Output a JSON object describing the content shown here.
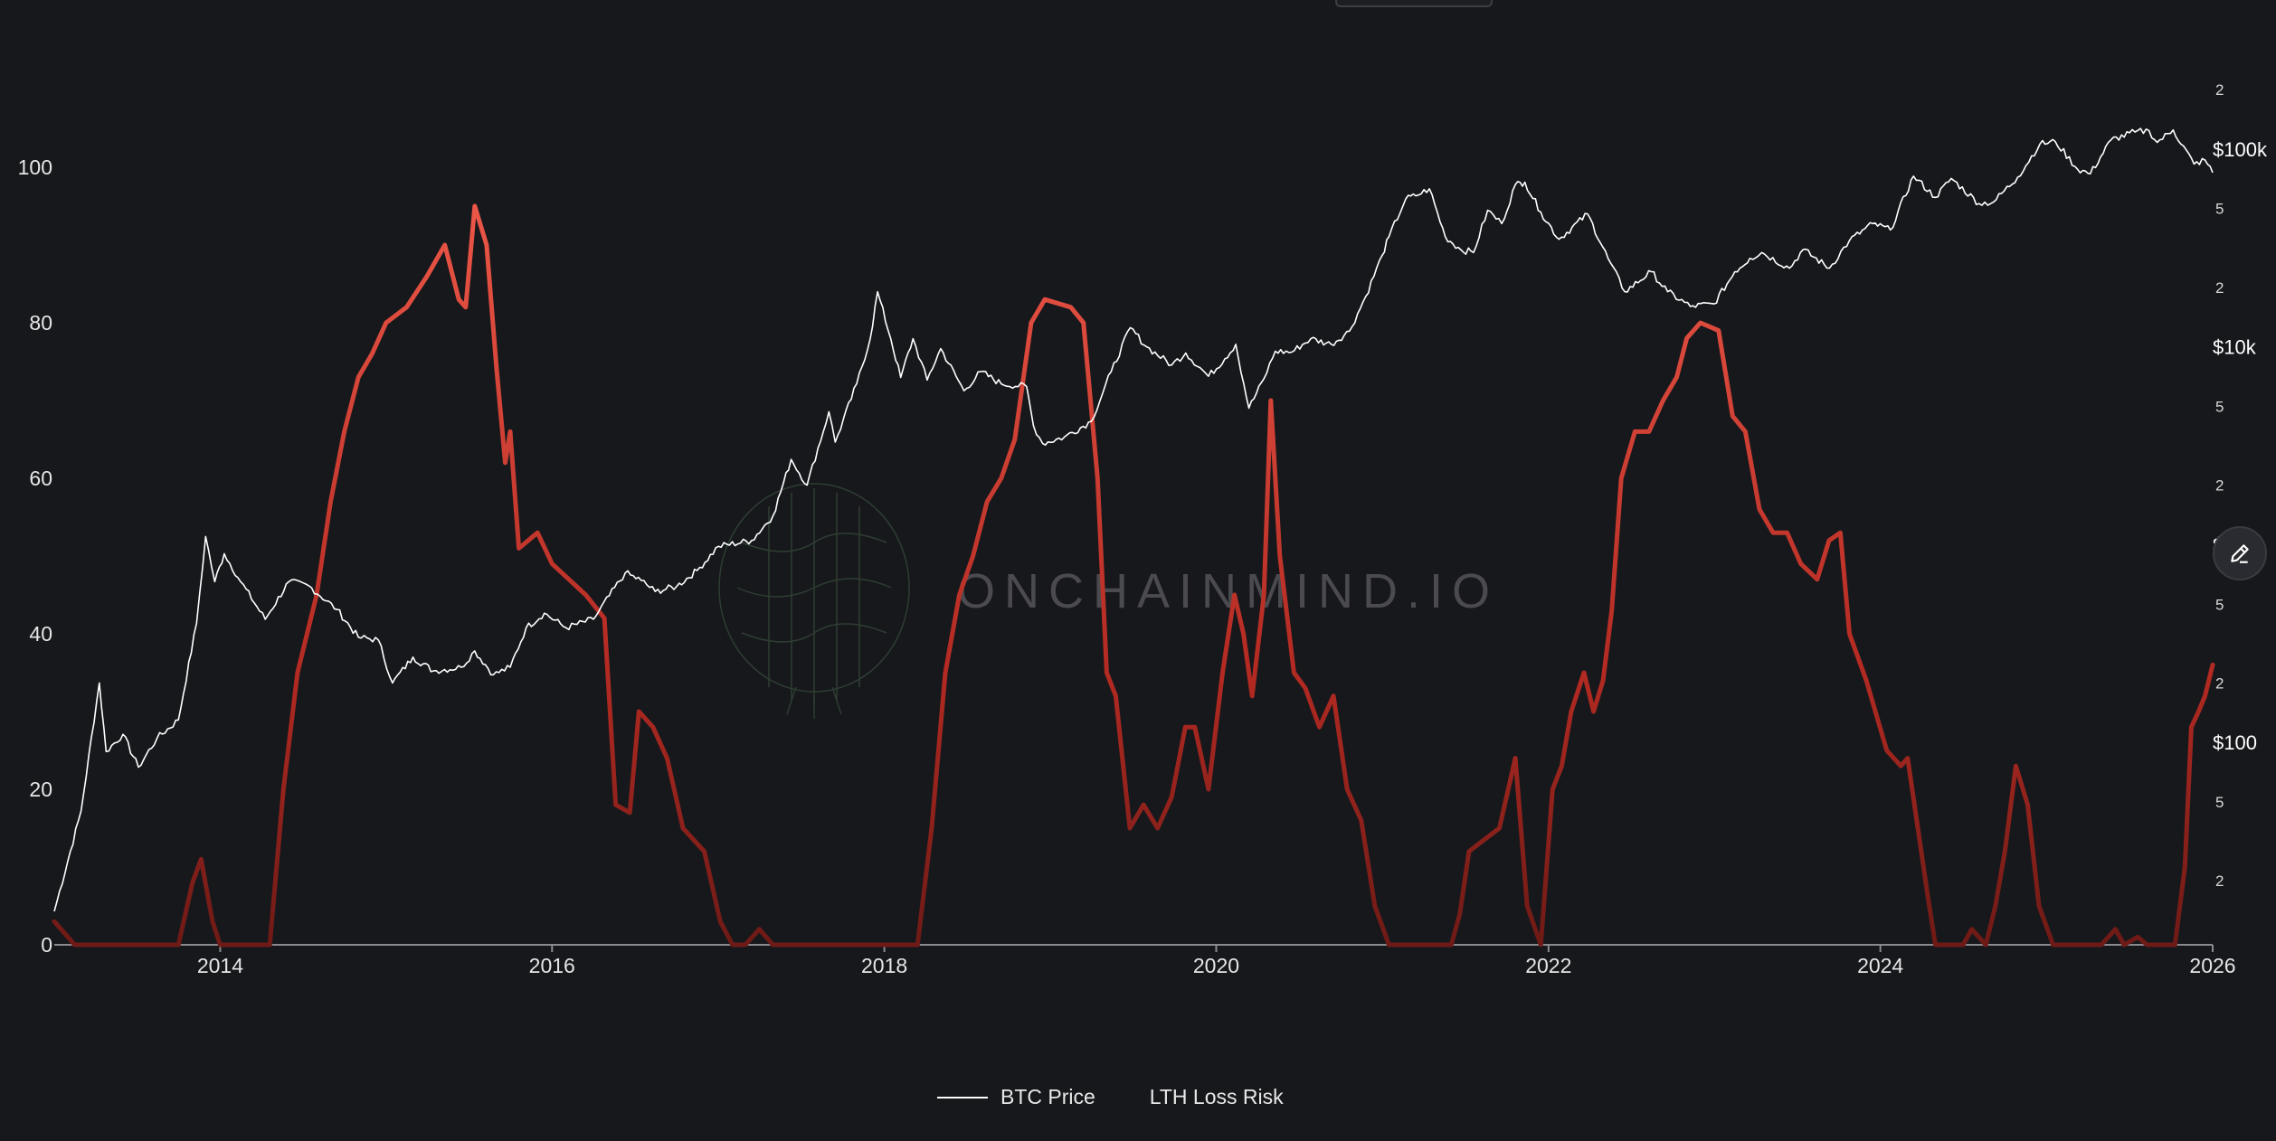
{
  "chart_data": {
    "type": "line",
    "watermark": "ONCHAINMIND.IO",
    "x_axis": {
      "range": [
        "2013-01-01",
        "2026-01-01"
      ],
      "tick_labels": [
        "2014",
        "2016",
        "2018",
        "2020",
        "2022",
        "2024",
        "2026"
      ]
    },
    "y_left": {
      "range": [
        0,
        100
      ],
      "tick_labels": [
        "0",
        "20",
        "40",
        "60",
        "80",
        "100"
      ]
    },
    "y_right": {
      "scale": "log",
      "range": [
        10,
        200000
      ],
      "tick_labels": [
        {
          "v": 20,
          "t": "2"
        },
        {
          "v": 50,
          "t": "5"
        },
        {
          "v": 100,
          "t": "$100"
        },
        {
          "v": 200,
          "t": "2"
        },
        {
          "v": 500,
          "t": "5"
        },
        {
          "v": 1000,
          "t": "$1k"
        },
        {
          "v": 2000,
          "t": "2"
        },
        {
          "v": 5000,
          "t": "5"
        },
        {
          "v": 10000,
          "t": "$10k"
        },
        {
          "v": 20000,
          "t": "2"
        },
        {
          "v": 50000,
          "t": "5"
        },
        {
          "v": 100000,
          "t": "$100k"
        },
        {
          "v": 200000,
          "t": "2"
        }
      ]
    },
    "grid": false,
    "legend_position": "bottom-center",
    "colors": {
      "price": "#ffffff",
      "risk_high": "#e2463a",
      "risk_low": "#7a1d18",
      "background": "#17181c"
    },
    "series": [
      {
        "name": "BTC Price",
        "axis": "right",
        "points": [
          [
            "2013-01-01",
            14
          ],
          [
            "2013-03-01",
            45
          ],
          [
            "2013-04-10",
            200
          ],
          [
            "2013-04-25",
            90
          ],
          [
            "2013-06-01",
            110
          ],
          [
            "2013-07-05",
            75
          ],
          [
            "2013-08-15",
            105
          ],
          [
            "2013-10-01",
            130
          ],
          [
            "2013-11-10",
            400
          ],
          [
            "2013-11-30",
            1100
          ],
          [
            "2013-12-20",
            650
          ],
          [
            "2014-01-10",
            900
          ],
          [
            "2014-02-15",
            650
          ],
          [
            "2014-04-10",
            420
          ],
          [
            "2014-06-01",
            650
          ],
          [
            "2014-07-15",
            620
          ],
          [
            "2014-09-15",
            470
          ],
          [
            "2014-11-01",
            340
          ],
          [
            "2014-12-15",
            330
          ],
          [
            "2015-01-15",
            200
          ],
          [
            "2015-03-01",
            270
          ],
          [
            "2015-04-15",
            230
          ],
          [
            "2015-06-15",
            240
          ],
          [
            "2015-07-15",
            290
          ],
          [
            "2015-08-25",
            220
          ],
          [
            "2015-10-01",
            240
          ],
          [
            "2015-11-05",
            380
          ],
          [
            "2015-12-15",
            450
          ],
          [
            "2016-02-01",
            380
          ],
          [
            "2016-04-01",
            420
          ],
          [
            "2016-06-10",
            720
          ],
          [
            "2016-07-15",
            660
          ],
          [
            "2016-08-15",
            580
          ],
          [
            "2016-10-01",
            615
          ],
          [
            "2016-11-15",
            740
          ],
          [
            "2017-01-01",
            980
          ],
          [
            "2017-03-15",
            1050
          ],
          [
            "2017-05-01",
            1400
          ],
          [
            "2017-06-10",
            2700
          ],
          [
            "2017-07-15",
            2000
          ],
          [
            "2017-09-01",
            4700
          ],
          [
            "2017-09-15",
            3300
          ],
          [
            "2017-11-01",
            6500
          ],
          [
            "2017-12-01",
            11000
          ],
          [
            "2017-12-17",
            19000
          ],
          [
            "2018-01-15",
            11000
          ],
          [
            "2018-02-06",
            7000
          ],
          [
            "2018-03-05",
            11000
          ],
          [
            "2018-04-05",
            6800
          ],
          [
            "2018-05-05",
            9800
          ],
          [
            "2018-06-25",
            6000
          ],
          [
            "2018-08-01",
            7500
          ],
          [
            "2018-09-15",
            6500
          ],
          [
            "2018-11-10",
            6300
          ],
          [
            "2018-11-25",
            4000
          ],
          [
            "2018-12-15",
            3250
          ],
          [
            "2019-02-01",
            3500
          ],
          [
            "2019-04-01",
            4200
          ],
          [
            "2019-05-15",
            7500
          ],
          [
            "2019-06-26",
            12500
          ],
          [
            "2019-08-01",
            10000
          ],
          [
            "2019-09-25",
            8100
          ],
          [
            "2019-10-26",
            9300
          ],
          [
            "2019-12-15",
            7100
          ],
          [
            "2020-01-20",
            8700
          ],
          [
            "2020-02-13",
            10300
          ],
          [
            "2020-03-13",
            4900
          ],
          [
            "2020-04-15",
            6900
          ],
          [
            "2020-05-10",
            9500
          ],
          [
            "2020-06-15",
            9400
          ],
          [
            "2020-07-27",
            11000
          ],
          [
            "2020-09-10",
            10300
          ],
          [
            "2020-10-20",
            12000
          ],
          [
            "2020-11-25",
            18000
          ],
          [
            "2020-12-31",
            29000
          ],
          [
            "2021-01-15",
            36000
          ],
          [
            "2021-02-21",
            56000
          ],
          [
            "2021-03-15",
            58000
          ],
          [
            "2021-04-14",
            63000
          ],
          [
            "2021-05-19",
            36000
          ],
          [
            "2021-06-22",
            31000
          ],
          [
            "2021-07-20",
            30000
          ],
          [
            "2021-08-20",
            49000
          ],
          [
            "2021-09-20",
            42000
          ],
          [
            "2021-10-20",
            66000
          ],
          [
            "2021-11-10",
            68000
          ],
          [
            "2021-12-15",
            48000
          ],
          [
            "2022-01-24",
            35000
          ],
          [
            "2022-03-28",
            47000
          ],
          [
            "2022-05-12",
            28000
          ],
          [
            "2022-06-18",
            19000
          ],
          [
            "2022-08-15",
            24000
          ],
          [
            "2022-09-20",
            19000
          ],
          [
            "2022-11-09",
            16000
          ],
          [
            "2022-12-31",
            16500
          ],
          [
            "2023-02-15",
            24000
          ],
          [
            "2023-03-20",
            28000
          ],
          [
            "2023-04-15",
            30000
          ],
          [
            "2023-06-15",
            25000
          ],
          [
            "2023-07-15",
            31000
          ],
          [
            "2023-09-11",
            25000
          ],
          [
            "2023-10-25",
            34500
          ],
          [
            "2023-12-15",
            42000
          ],
          [
            "2024-01-23",
            39000
          ],
          [
            "2024-03-14",
            73000
          ],
          [
            "2024-05-01",
            57000
          ],
          [
            "2024-06-05",
            71000
          ],
          [
            "2024-08-05",
            53000
          ],
          [
            "2024-09-06",
            54000
          ],
          [
            "2024-10-29",
            72000
          ],
          [
            "2024-12-17",
            106000
          ],
          [
            "2025-01-20",
            109000
          ],
          [
            "2025-03-10",
            79000
          ],
          [
            "2025-04-07",
            75000
          ],
          [
            "2025-05-22",
            111000
          ],
          [
            "2025-07-14",
            122000
          ],
          [
            "2025-08-14",
            124000
          ],
          [
            "2025-09-01",
            108000
          ],
          [
            "2025-10-06",
            125000
          ],
          [
            "2025-11-21",
            84000
          ],
          [
            "2025-12-15",
            88000
          ],
          [
            "2026-01-01",
            76000
          ]
        ]
      },
      {
        "name": "LTH Loss Risk",
        "axis": "left",
        "points": [
          [
            "2013-01-01",
            3
          ],
          [
            "2013-02-15",
            0
          ],
          [
            "2013-10-01",
            0
          ],
          [
            "2013-11-01",
            8
          ],
          [
            "2013-11-20",
            11
          ],
          [
            "2013-12-15",
            3
          ],
          [
            "2014-01-01",
            0
          ],
          [
            "2014-04-20",
            0
          ],
          [
            "2014-05-20",
            20
          ],
          [
            "2014-06-20",
            35
          ],
          [
            "2014-08-01",
            45
          ],
          [
            "2014-09-01",
            57
          ],
          [
            "2014-10-01",
            66
          ],
          [
            "2014-11-01",
            73
          ],
          [
            "2014-12-01",
            76
          ],
          [
            "2015-01-01",
            80
          ],
          [
            "2015-02-15",
            82
          ],
          [
            "2015-04-01",
            86
          ],
          [
            "2015-05-10",
            90
          ],
          [
            "2015-06-10",
            83
          ],
          [
            "2015-06-25",
            82
          ],
          [
            "2015-07-15",
            95
          ],
          [
            "2015-08-10",
            90
          ],
          [
            "2015-09-01",
            74
          ],
          [
            "2015-09-20",
            62
          ],
          [
            "2015-10-01",
            66
          ],
          [
            "2015-10-20",
            51
          ],
          [
            "2015-11-30",
            53
          ],
          [
            "2016-01-01",
            49
          ],
          [
            "2016-03-15",
            45
          ],
          [
            "2016-04-25",
            42
          ],
          [
            "2016-05-20",
            18
          ],
          [
            "2016-06-20",
            17
          ],
          [
            "2016-07-10",
            30
          ],
          [
            "2016-08-10",
            28
          ],
          [
            "2016-09-10",
            24
          ],
          [
            "2016-10-15",
            15
          ],
          [
            "2016-12-01",
            12
          ],
          [
            "2017-01-05",
            3
          ],
          [
            "2017-02-01",
            0
          ],
          [
            "2017-03-01",
            0
          ],
          [
            "2017-04-01",
            2
          ],
          [
            "2017-05-01",
            0
          ],
          [
            "2018-03-15",
            0
          ],
          [
            "2018-04-15",
            15
          ],
          [
            "2018-05-15",
            35
          ],
          [
            "2018-06-15",
            45
          ],
          [
            "2018-07-15",
            50
          ],
          [
            "2018-08-15",
            57
          ],
          [
            "2018-09-15",
            60
          ],
          [
            "2018-10-15",
            65
          ],
          [
            "2018-11-20",
            80
          ],
          [
            "2018-12-20",
            83
          ],
          [
            "2019-02-15",
            82
          ],
          [
            "2019-03-15",
            80
          ],
          [
            "2019-04-15",
            60
          ],
          [
            "2019-05-05",
            35
          ],
          [
            "2019-05-25",
            32
          ],
          [
            "2019-06-25",
            15
          ],
          [
            "2019-07-25",
            18
          ],
          [
            "2019-08-25",
            15
          ],
          [
            "2019-09-25",
            19
          ],
          [
            "2019-10-25",
            28
          ],
          [
            "2019-11-15",
            28
          ],
          [
            "2019-12-15",
            20
          ],
          [
            "2020-01-15",
            35
          ],
          [
            "2020-02-10",
            45
          ],
          [
            "2020-03-01",
            40
          ],
          [
            "2020-03-20",
            32
          ],
          [
            "2020-04-15",
            45
          ],
          [
            "2020-04-30",
            70
          ],
          [
            "2020-05-20",
            50
          ],
          [
            "2020-06-20",
            35
          ],
          [
            "2020-07-15",
            33
          ],
          [
            "2020-08-15",
            28
          ],
          [
            "2020-09-15",
            32
          ],
          [
            "2020-10-15",
            20
          ],
          [
            "2020-11-15",
            16
          ],
          [
            "2020-12-15",
            5
          ],
          [
            "2021-01-15",
            0
          ],
          [
            "2021-06-01",
            0
          ],
          [
            "2021-06-20",
            4
          ],
          [
            "2021-07-10",
            12
          ],
          [
            "2021-08-01",
            13
          ],
          [
            "2021-09-15",
            15
          ],
          [
            "2021-10-20",
            24
          ],
          [
            "2021-11-15",
            5
          ],
          [
            "2021-12-15",
            0
          ],
          [
            "2022-01-10",
            20
          ],
          [
            "2022-01-30",
            23
          ],
          [
            "2022-02-20",
            30
          ],
          [
            "2022-03-20",
            35
          ],
          [
            "2022-04-10",
            30
          ],
          [
            "2022-05-01",
            34
          ],
          [
            "2022-05-20",
            43
          ],
          [
            "2022-06-10",
            60
          ],
          [
            "2022-07-10",
            66
          ],
          [
            "2022-08-10",
            66
          ],
          [
            "2022-09-10",
            70
          ],
          [
            "2022-10-10",
            73
          ],
          [
            "2022-11-01",
            78
          ],
          [
            "2022-12-01",
            80
          ],
          [
            "2023-01-10",
            79
          ],
          [
            "2023-02-10",
            68
          ],
          [
            "2023-03-10",
            66
          ],
          [
            "2023-04-10",
            56
          ],
          [
            "2023-05-10",
            53
          ],
          [
            "2023-06-10",
            53
          ],
          [
            "2023-07-10",
            49
          ],
          [
            "2023-08-15",
            47
          ],
          [
            "2023-09-10",
            52
          ],
          [
            "2023-10-05",
            53
          ],
          [
            "2023-10-25",
            40
          ],
          [
            "2023-12-01",
            34
          ],
          [
            "2024-01-15",
            25
          ],
          [
            "2024-02-15",
            23
          ],
          [
            "2024-03-01",
            24
          ],
          [
            "2024-04-15",
            6
          ],
          [
            "2024-05-01",
            0
          ],
          [
            "2024-07-01",
            0
          ],
          [
            "2024-07-20",
            2
          ],
          [
            "2024-08-20",
            0
          ],
          [
            "2024-09-10",
            5
          ],
          [
            "2024-10-01",
            12
          ],
          [
            "2024-10-25",
            23
          ],
          [
            "2024-11-20",
            18
          ],
          [
            "2024-12-15",
            5
          ],
          [
            "2025-01-15",
            0
          ],
          [
            "2025-05-01",
            0
          ],
          [
            "2025-06-01",
            2
          ],
          [
            "2025-06-20",
            0
          ],
          [
            "2025-07-20",
            1
          ],
          [
            "2025-08-10",
            0
          ],
          [
            "2025-10-10",
            0
          ],
          [
            "2025-11-01",
            10
          ],
          [
            "2025-11-15",
            28
          ],
          [
            "2025-12-01",
            30
          ],
          [
            "2025-12-15",
            32
          ],
          [
            "2026-01-01",
            36
          ]
        ]
      }
    ]
  },
  "legend": {
    "items": [
      "BTC Price",
      "LTH Loss Risk"
    ]
  }
}
